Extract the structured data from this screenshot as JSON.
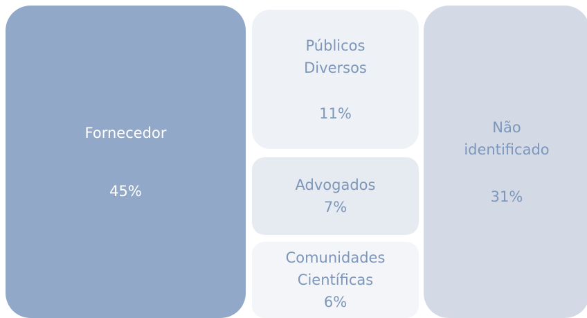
{
  "chart_data": {
    "type": "treemap",
    "categories": [
      "Fornecedor",
      "Públicos Diversos",
      "Advogados",
      "Comunidades Científicas",
      "Não identificado"
    ],
    "values": [
      45,
      11,
      7,
      6,
      31
    ],
    "value_labels": [
      "45%",
      "11%",
      "7%",
      "6%",
      "31%"
    ],
    "colors": [
      "#91a8c8",
      "#eef1f6",
      "#e6eaf1",
      "#f3f5f8",
      "#d3dae6"
    ]
  }
}
